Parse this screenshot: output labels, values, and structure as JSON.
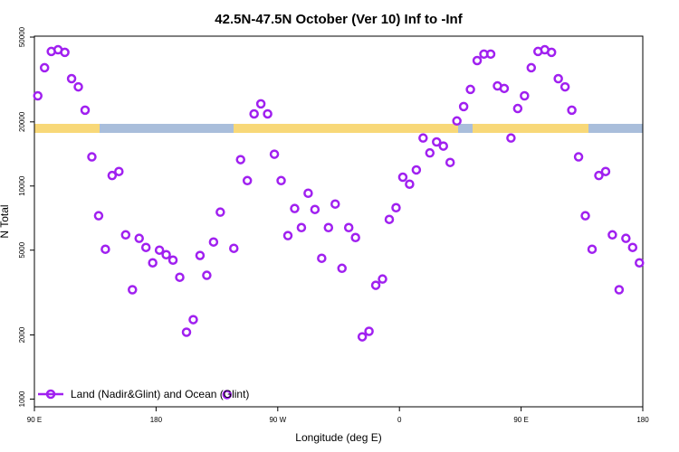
{
  "chart_data": {
    "type": "scatter",
    "title": "42.5N-47.5N October (Ver 10)   Inf to -Inf",
    "x_label": "Longitude (deg E)",
    "y_label": "N Total",
    "x": [
      92.5,
      97.5,
      102.5,
      107.5,
      112.5,
      117.5,
      122.5,
      127.5,
      132.5,
      137.5,
      142.5,
      147.5,
      152.5,
      157.5,
      162.5,
      167.5,
      172.5,
      177.5,
      182.5,
      187.5,
      192.5,
      197.5,
      202.5,
      207.5,
      212.5,
      217.5,
      222.5,
      227.5,
      232.5,
      237.5,
      242.5,
      247.5,
      252.5,
      257.5,
      262.5,
      267.5,
      272.5,
      277.5,
      282.5,
      287.5,
      292.5,
      297.5,
      302.5,
      307.5,
      312.5,
      317.5,
      322.5,
      327.5,
      332.5,
      337.5,
      342.5,
      347.5,
      352.5,
      357.5,
      362.5,
      367.5,
      372.5,
      377.5,
      382.5,
      387.5,
      392.5,
      397.5,
      402.5,
      407.5,
      412.5,
      417.5,
      422.5,
      427.5,
      432.5,
      437.5,
      442.5,
      447.5,
      452.5,
      457.5,
      462.5,
      467.5,
      472.5,
      477.5,
      482.5,
      487.5,
      492.5,
      497.5,
      502.5,
      507.5,
      512.5,
      517.5,
      522.5,
      527.5,
      532.5,
      537.5
    ],
    "series": [
      {
        "name": "Land (Nadir&Glint) and Ocean (Glint)",
        "color": "#a020f0",
        "values": [
          26500,
          35900,
          42800,
          43600,
          42400,
          31900,
          29200,
          22700,
          13700,
          7250,
          5050,
          11200,
          11700,
          5900,
          3260,
          5680,
          5150,
          4360,
          5000,
          4760,
          4490,
          3730,
          2060,
          2360,
          4720,
          3810,
          5460,
          7540,
          1050,
          5100,
          13300,
          10600,
          21800,
          24300,
          21800,
          14100,
          10600,
          5850,
          7840,
          6380,
          9250,
          7760,
          4580,
          6380,
          8230,
          4110,
          6380,
          5730,
          1960,
          2080,
          3420,
          3660,
          6970,
          7910,
          11000,
          10200,
          11900,
          16800,
          14300,
          16100,
          15400,
          12900,
          20200,
          23600,
          28400,
          38800,
          41600,
          41600,
          29500,
          28700,
          16800,
          23100,
          26500,
          35900,
          42800,
          43600,
          42400,
          31900,
          29200,
          22700,
          13700,
          7250,
          5050,
          11200,
          11700,
          5900,
          3260,
          5680,
          5150,
          4360
        ]
      }
    ],
    "xlim": [
      90,
      540
    ],
    "xticks": [
      {
        "value": 90,
        "label": "90 E"
      },
      180,
      {
        "value": 270,
        "label": "90 W"
      },
      {
        "value": 360,
        "label": "0"
      },
      {
        "value": 450,
        "label": "90 E"
      },
      {
        "value": 540,
        "label": "180"
      }
    ],
    "ylim": [
      920,
      50500
    ],
    "yticks": [
      1000,
      2000,
      5000,
      10000,
      20000,
      50000
    ],
    "y_scale": "log",
    "legend": "bottom-left"
  }
}
